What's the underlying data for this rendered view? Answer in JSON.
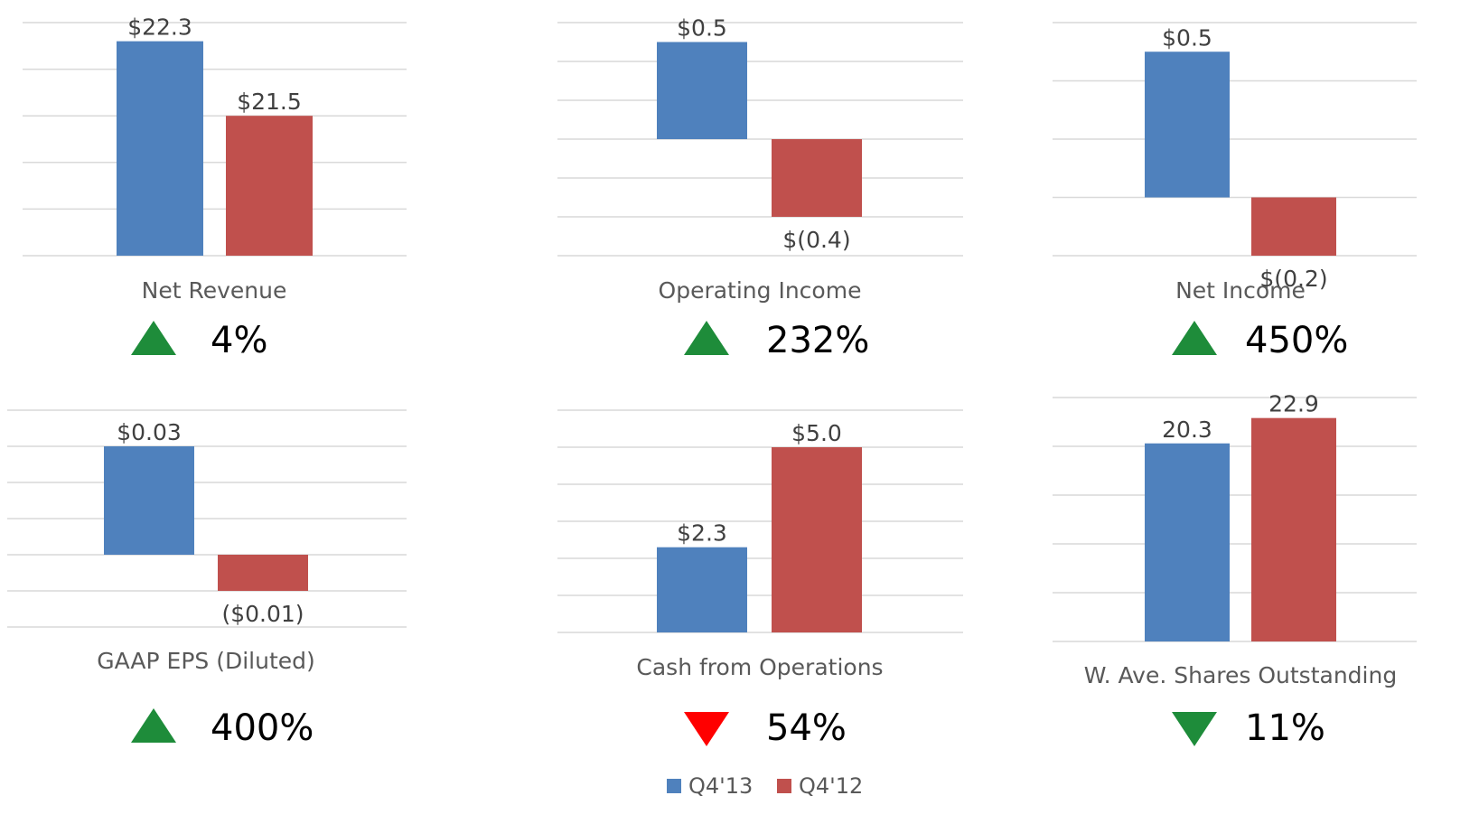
{
  "chart_data": [
    {
      "type": "bar",
      "title": "Net Revenue",
      "values": [
        22.3,
        21.5
      ],
      "value_labels": [
        "$22.3",
        "$21.5"
      ],
      "ylim": [
        20,
        22.5
      ],
      "yticks": [
        20,
        20.5,
        21,
        21.5,
        22,
        22.5
      ],
      "grid": true,
      "change": "4%",
      "change_direction": "up",
      "change_color": "#1e8c3a"
    },
    {
      "type": "bar",
      "title": "Operating Income",
      "values": [
        0.5,
        -0.4
      ],
      "value_labels": [
        "$0.5",
        "$(0.4)"
      ],
      "ylim": [
        -0.6,
        0.6
      ],
      "yticks": [
        -0.6,
        -0.4,
        -0.2,
        0,
        0.2,
        0.4,
        0.6
      ],
      "grid": true,
      "change": "232%",
      "change_direction": "up",
      "change_color": "#1e8c3a"
    },
    {
      "type": "bar",
      "title": "Net Income",
      "values": [
        0.5,
        -0.2
      ],
      "value_labels": [
        "$0.5",
        "$(0.2)"
      ],
      "ylim": [
        -0.2,
        0.6
      ],
      "yticks": [
        -0.2,
        0,
        0.2,
        0.4,
        0.6
      ],
      "grid": true,
      "change": "450%",
      "change_direction": "up",
      "change_color": "#1e8c3a"
    },
    {
      "type": "bar",
      "title": "GAAP EPS (Diluted)",
      "values": [
        0.03,
        -0.01
      ],
      "value_labels": [
        "$0.03",
        "($0.01)"
      ],
      "ylim": [
        -0.02,
        0.04
      ],
      "yticks": [
        -0.02,
        -0.01,
        0,
        0.01,
        0.02,
        0.03,
        0.04
      ],
      "grid": true,
      "change": "400%",
      "change_direction": "up",
      "change_color": "#1e8c3a"
    },
    {
      "type": "bar",
      "title": "Cash from Operations",
      "values": [
        2.3,
        5.0
      ],
      "value_labels": [
        "$2.3",
        "$5.0"
      ],
      "ylim": [
        0,
        6
      ],
      "yticks": [
        0,
        1,
        2,
        3,
        4,
        5,
        6
      ],
      "grid": true,
      "change": "54%",
      "change_direction": "down",
      "change_color": "#ff0000"
    },
    {
      "type": "bar",
      "title": "W. Ave. Shares Outstanding",
      "values": [
        20.3,
        22.9
      ],
      "ylim": [
        0,
        25
      ],
      "yticks": [
        0,
        5,
        10,
        15,
        20,
        25
      ],
      "grid": true,
      "change": "11%",
      "change_direction": "down",
      "change_color": "#1e8c3a"
    }
  ],
  "legend": [
    {
      "name": "Q4'13",
      "color": "#4f81bd"
    },
    {
      "name": "Q4'12",
      "color": "#c0504d"
    }
  ]
}
